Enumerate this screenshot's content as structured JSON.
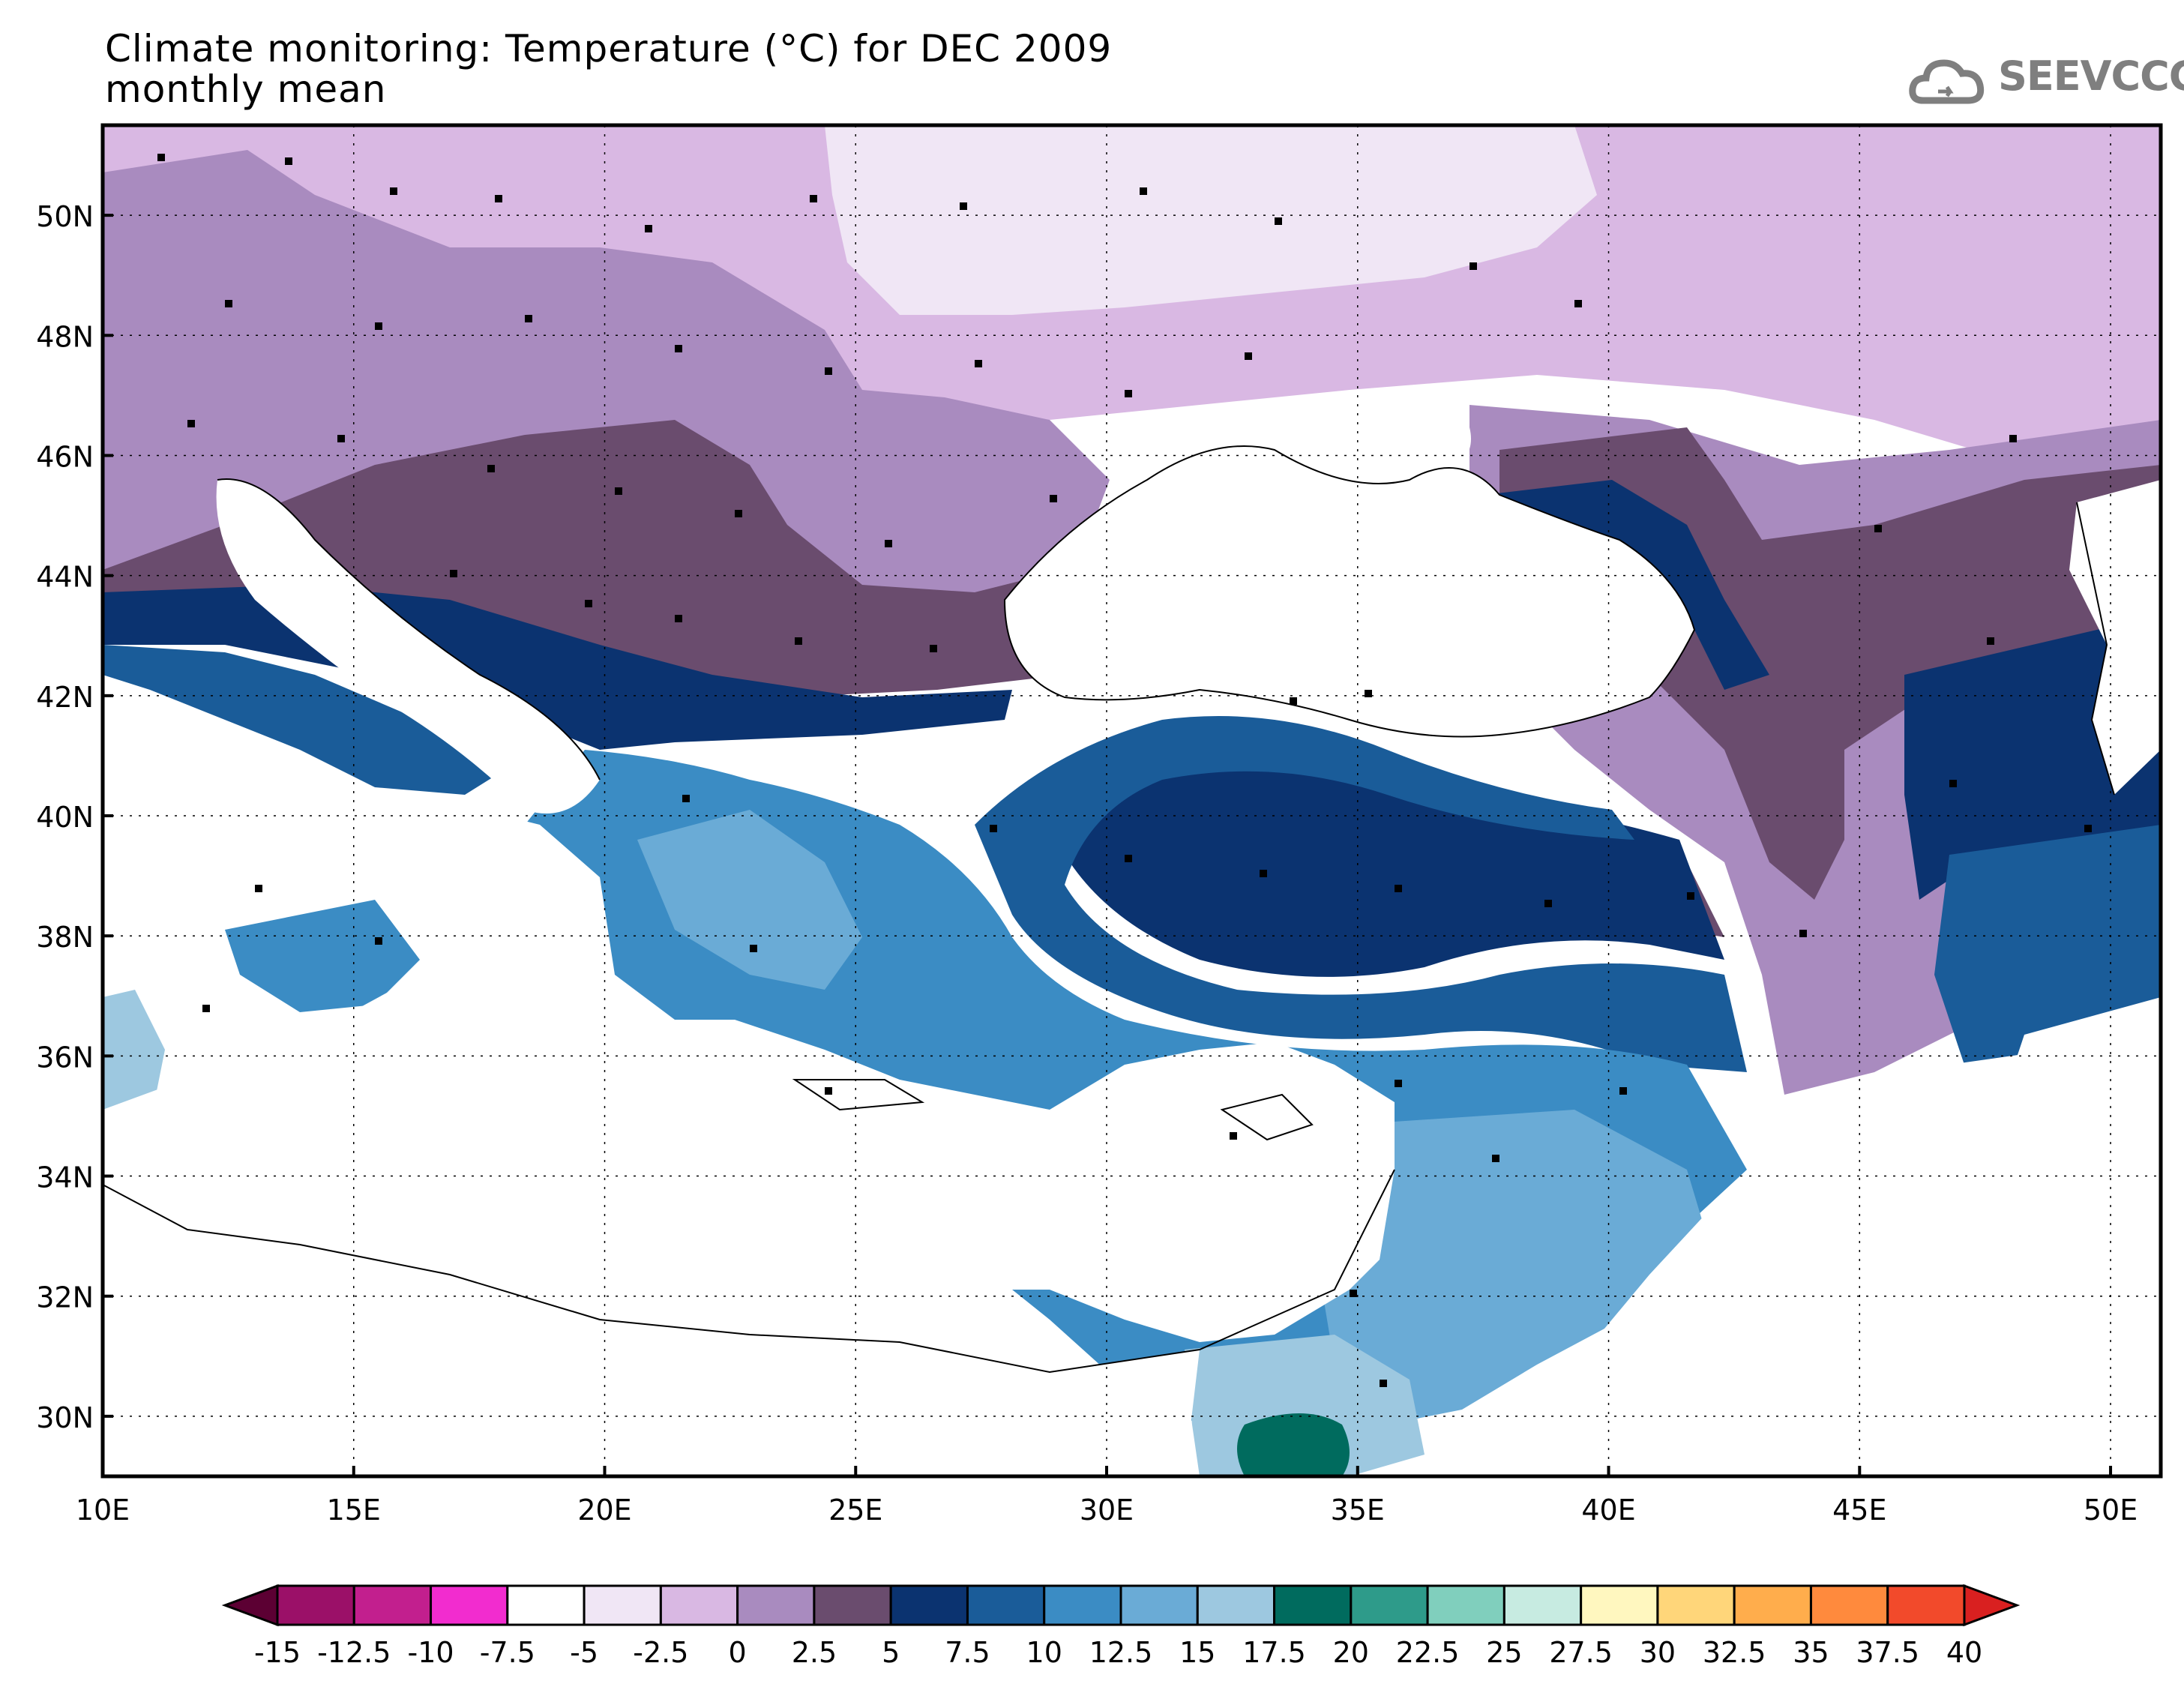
{
  "title": "Climate monitoring: Temperature (°C) for DEC 2009",
  "subtitle": "monthly mean",
  "logo_text": "SEEVCCC",
  "lat_ticks": [
    "50N",
    "48N",
    "46N",
    "44N",
    "42N",
    "40N",
    "38N",
    "36N",
    "34N",
    "32N",
    "30N"
  ],
  "lon_ticks": [
    "10E",
    "15E",
    "20E",
    "25E",
    "30E",
    "35E",
    "40E",
    "45E",
    "50E"
  ],
  "colorbar": {
    "labels": [
      "-15",
      "-12.5",
      "-10",
      "-7.5",
      "-5",
      "-2.5",
      "0",
      "2.5",
      "5",
      "7.5",
      "10",
      "12.5",
      "15",
      "17.5",
      "20",
      "22.5",
      "25",
      "27.5",
      "30",
      "32.5",
      "35",
      "37.5",
      "40"
    ],
    "colors": [
      "#5c0033",
      "#9b1068",
      "#c21f8e",
      "#f22ccf",
      "#ffffff",
      "#f0e6f5",
      "#d9b8e3",
      "#a98bbf",
      "#6a4c6e",
      "#0b3370",
      "#1a5c99",
      "#3b8cc4",
      "#6aabd6",
      "#9dc8e0",
      "#006b5e",
      "#2e9b8a",
      "#80cfbd",
      "#c7ebe1",
      "#fff7bf",
      "#ffd67a",
      "#ffad4c",
      "#ff8a3d",
      "#f24a2b",
      "#d92020"
    ]
  },
  "chart_data": {
    "type": "heatmap",
    "title": "Climate monitoring: Temperature (°C) for DEC 2009",
    "subtitle": "monthly mean",
    "xlim": [
      10,
      51
    ],
    "ylim": [
      29,
      51.5
    ],
    "x_ticks": [
      10,
      15,
      20,
      25,
      30,
      35,
      40,
      45,
      50
    ],
    "y_ticks": [
      30,
      32,
      34,
      36,
      38,
      40,
      42,
      44,
      46,
      48,
      50
    ],
    "grid": true,
    "colorbar_levels": [
      -15,
      -12.5,
      -10,
      -7.5,
      -5,
      -2.5,
      0,
      2.5,
      5,
      7.5,
      10,
      12.5,
      15,
      17.5,
      20,
      22.5,
      25,
      27.5,
      30,
      32.5,
      35,
      37.5,
      40
    ]
  }
}
